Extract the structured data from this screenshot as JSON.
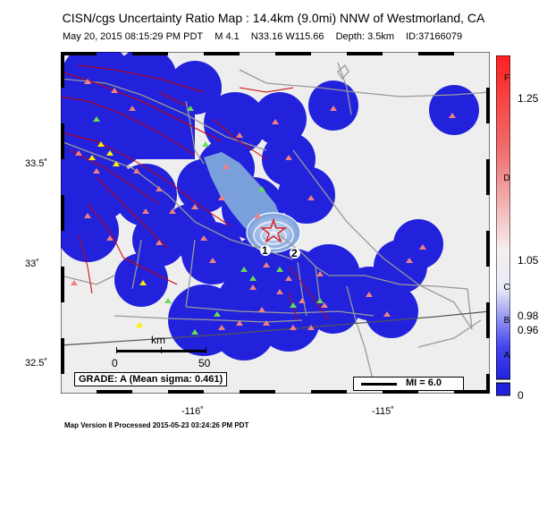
{
  "header": {
    "title": "CISN/cgs Uncertainty Ratio Map : 14.4km (9.0mi) NNW of Westmorland, CA",
    "date": "May 20, 2015 08:15:29 PM PDT",
    "magnitude": "M 4.1",
    "location": "N33.16 W115.66",
    "depth": "Depth: 3.5km",
    "event_id": "ID:37166079"
  },
  "axes": {
    "lat_labels": [
      "33.5˚",
      "33˚",
      "32.5˚"
    ],
    "lon_labels": [
      "-116˚",
      "-115˚"
    ]
  },
  "colorbar": {
    "letters": [
      "F",
      "D",
      "C",
      "B",
      "A"
    ],
    "values": [
      "1.25",
      "1.05",
      "0.98",
      "0.96",
      "0"
    ]
  },
  "map": {
    "grade_text": "GRADE: A (Mean sigma: 0.461)",
    "mi_text": "MI = 6.0",
    "scale_unit": "km",
    "scale_start": "0",
    "scale_end": "50",
    "contour_labels": [
      "1",
      "2"
    ],
    "colors": {
      "coverage": "#2222dd",
      "lake": "#7aa0dc",
      "background": "#eeeeee",
      "faults": "#cc0000"
    }
  },
  "footer": "Map Version 8 Processed 2015-05-23 03:24:26 PM PDT"
}
